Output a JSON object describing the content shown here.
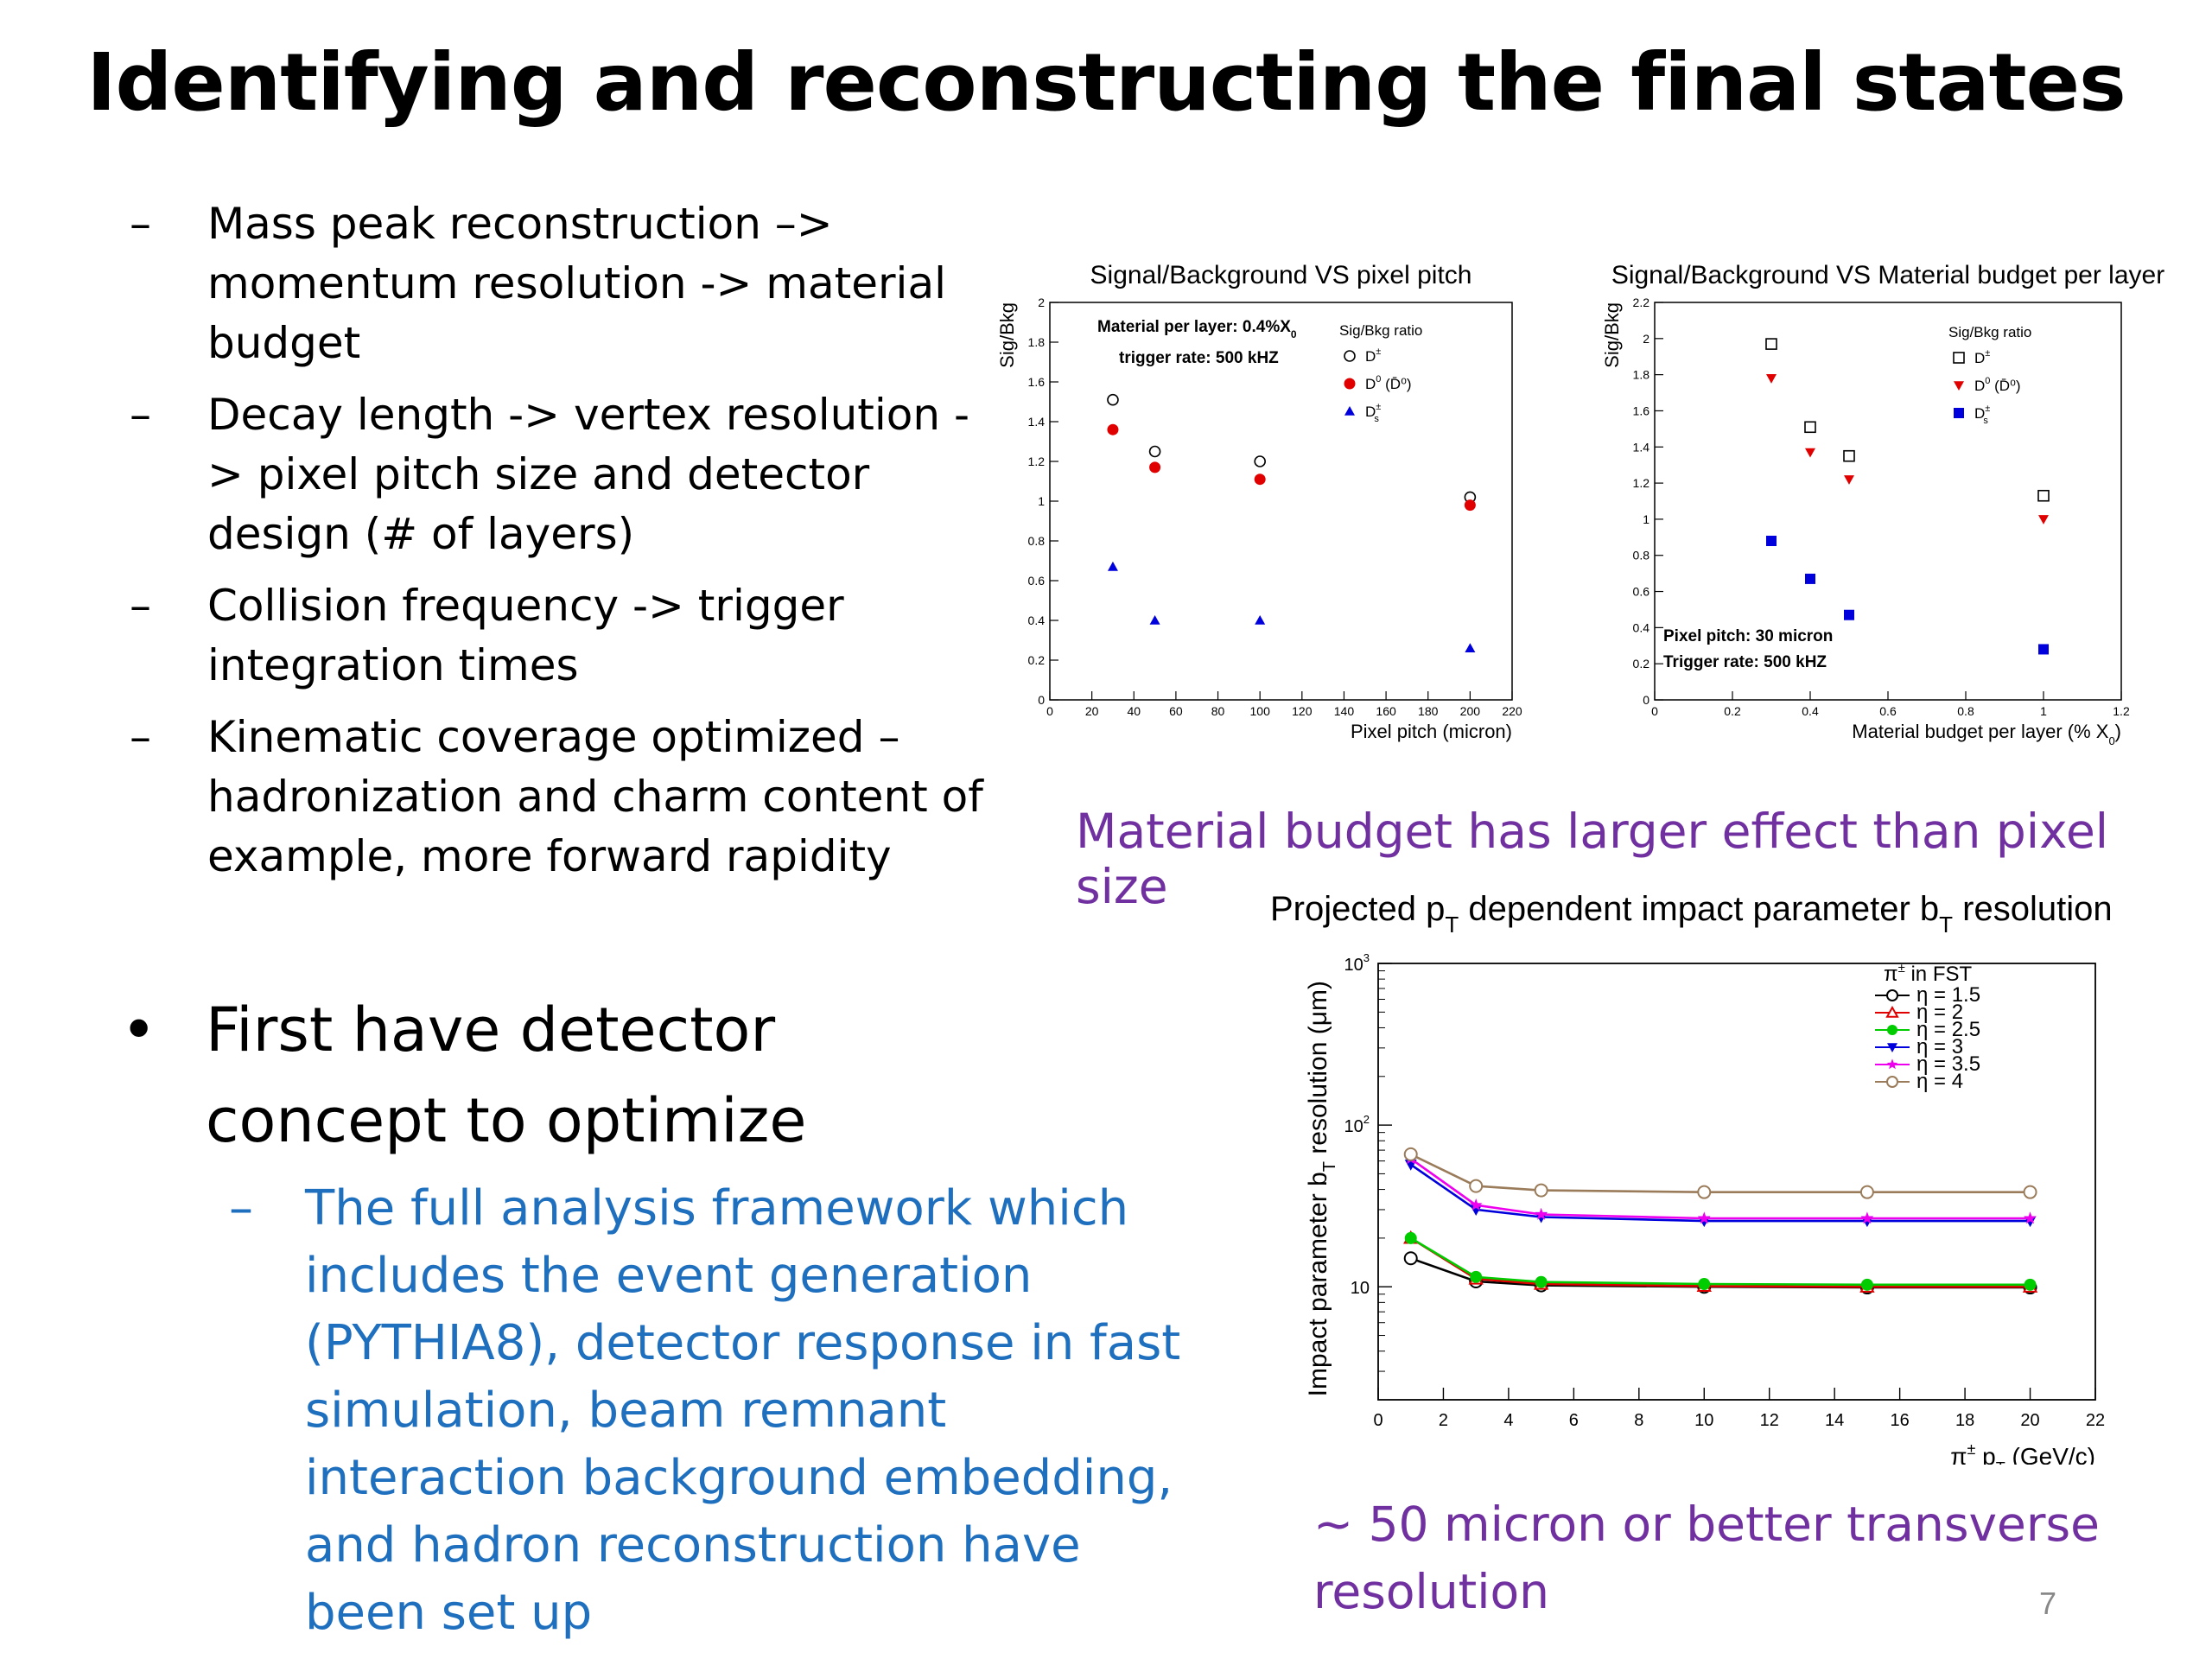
{
  "slide": {
    "title": "Identifying and reconstructing the final states",
    "dash": "–",
    "bullet_symbol": "•",
    "bullets": [
      "Mass peak reconstruction –> momentum resolution -> material budget",
      "Decay length -> vertex resolution - > pixel pitch size and detector design (# of layers)",
      "Collision frequency -> trigger integration times",
      "Kinematic coverage optimized – hadronization and charm content of example, more forward rapidity"
    ],
    "main_point": "First have detector concept to optimize",
    "sub_point": "The full analysis framework which includes the event generation (PYTHIA8), detector response in fast simulation, beam remnant interaction background embedding, and hadron reconstruction have been set up",
    "caption_material": "Material budget has larger effect than pixel size",
    "caption_resolution": "~ 50 micron or better transverse resolution",
    "page_number": "7",
    "colors": {
      "sub_text": "#1f6fbf",
      "caption": "#7030a0",
      "red": "#e00000",
      "blue": "#0000dd",
      "green": "#00cc00",
      "magenta": "#ee00ee",
      "brown": "#9a7b5a"
    }
  },
  "chart_data": [
    {
      "type": "scatter",
      "title": "Signal/Background VS pixel pitch",
      "xlabel": "Pixel pitch (micron)",
      "ylabel": "Sig/Bkg",
      "xlim": [
        0,
        220
      ],
      "ylim": [
        0,
        2
      ],
      "xticks": [
        "0",
        "20",
        "40",
        "60",
        "80",
        "100",
        "120",
        "140",
        "160",
        "180",
        "200",
        "220"
      ],
      "yticks": [
        "0",
        "0.2",
        "0.4",
        "0.6",
        "0.8",
        "1",
        "1.2",
        "1.4",
        "1.6",
        "1.8",
        "2"
      ],
      "annotations": [
        "Material per layer: 0.4%X",
        "0",
        "trigger rate: 500 kHZ"
      ],
      "legend_title": "Sig/Bkg ratio",
      "legend": [
        {
          "label": "D",
          "sup": "±",
          "sub": ""
        },
        {
          "label": "D",
          "sup": "0",
          "sub": "",
          "extra": " (D̄⁰)"
        },
        {
          "label": "D",
          "sup": "±",
          "sub": "s"
        }
      ],
      "series": [
        {
          "name": "D±",
          "marker": "open-circle",
          "x": [
            30,
            50,
            100,
            200
          ],
          "y": [
            1.51,
            1.25,
            1.2,
            1.02
          ]
        },
        {
          "name": "D0",
          "marker": "red-circle",
          "x": [
            30,
            50,
            100,
            200
          ],
          "y": [
            1.36,
            1.17,
            1.11,
            0.98
          ]
        },
        {
          "name": "Ds",
          "marker": "blue-triangle",
          "x": [
            30,
            50,
            100,
            200
          ],
          "y": [
            0.67,
            0.4,
            0.4,
            0.26
          ]
        }
      ]
    },
    {
      "type": "scatter",
      "title": "Signal/Background VS Material budget per layer",
      "xlabel": "Material budget per layer (% X",
      "xlabel_sub": "0",
      "xlabel_end": ")",
      "ylabel": "Sig/Bkg",
      "xlim": [
        0,
        1.2
      ],
      "ylim": [
        0,
        2.2
      ],
      "xticks": [
        "0",
        "0.2",
        "0.4",
        "0.6",
        "0.8",
        "1",
        "1.2"
      ],
      "yticks": [
        "0",
        "0.2",
        "0.4",
        "0.6",
        "0.8",
        "1",
        "1.2",
        "1.4",
        "1.6",
        "1.8",
        "2",
        "2.2"
      ],
      "annotations": [
        "Pixel pitch: 30 micron",
        "Trigger rate: 500 kHZ"
      ],
      "legend_title": "Sig/Bkg ratio",
      "legend": [
        {
          "label": "D",
          "sup": "±",
          "sub": ""
        },
        {
          "label": "D",
          "sup": "0",
          "sub": "",
          "extra": " (D̄⁰)"
        },
        {
          "label": "D",
          "sup": "±",
          "sub": "s"
        }
      ],
      "series": [
        {
          "name": "D±",
          "marker": "open-square",
          "x": [
            0.3,
            0.4,
            0.5,
            1.0
          ],
          "y": [
            1.97,
            1.51,
            1.35,
            1.13
          ]
        },
        {
          "name": "D0",
          "marker": "red-triangle-down",
          "x": [
            0.3,
            0.4,
            0.5,
            1.0
          ],
          "y": [
            1.78,
            1.37,
            1.22,
            1.0
          ]
        },
        {
          "name": "Ds",
          "marker": "blue-square",
          "x": [
            0.3,
            0.4,
            0.5,
            1.0
          ],
          "y": [
            0.88,
            0.67,
            0.47,
            0.28
          ]
        }
      ]
    },
    {
      "type": "line",
      "title": "Projected p",
      "title_sub1": "T",
      "title_mid": " dependent impact parameter b",
      "title_sub2": "T",
      "title_end": " resolution",
      "xlabel": "π",
      "xlabel_sup": "±",
      "xlabel_mid": " p",
      "xlabel_sub": "T",
      "xlabel_end": " (GeV/c)",
      "ylabel": "Impact parameter b",
      "ylabel_sub": "T",
      "ylabel_end": " resolution (μm)",
      "xlim": [
        0,
        22
      ],
      "ylim": [
        2,
        1000
      ],
      "yscale": "log",
      "xticks": [
        "0",
        "2",
        "4",
        "6",
        "8",
        "10",
        "12",
        "14",
        "16",
        "18",
        "20",
        "22"
      ],
      "yticks": [
        {
          "value": 10,
          "label": "10"
        },
        {
          "value": 100,
          "label": "10",
          "sup": "2"
        },
        {
          "value": 1000,
          "label": "10",
          "sup": "3"
        }
      ],
      "legend_title": "π",
      "legend_title_sup": "±",
      "legend_title_end": " in FST",
      "series": [
        {
          "name": "η = 1.5",
          "color": "#000000",
          "marker": "open-circle",
          "x": [
            1,
            3,
            5,
            10,
            15,
            20
          ],
          "y": [
            15,
            10.8,
            10.2,
            10.0,
            9.9,
            9.9
          ]
        },
        {
          "name": "η = 2",
          "color": "#e00000",
          "marker": "open-triangle",
          "x": [
            1,
            3,
            5,
            10,
            15,
            20
          ],
          "y": [
            20,
            11.2,
            10.4,
            10.1,
            10.0,
            10.0
          ]
        },
        {
          "name": "η = 2.5",
          "color": "#00cc00",
          "marker": "filled-circle",
          "x": [
            1,
            3,
            5,
            10,
            15,
            20
          ],
          "y": [
            20,
            11.5,
            10.7,
            10.4,
            10.3,
            10.3
          ]
        },
        {
          "name": "η = 3",
          "color": "#0000dd",
          "marker": "filled-triangle-down",
          "x": [
            1,
            3,
            5,
            10,
            15,
            20
          ],
          "y": [
            57,
            30,
            27,
            25.5,
            25.5,
            25.5
          ]
        },
        {
          "name": "η = 3.5",
          "color": "#ee00ee",
          "marker": "star",
          "x": [
            1,
            3,
            5,
            10,
            15,
            20
          ],
          "y": [
            62,
            32,
            28,
            26.5,
            26.5,
            26.5
          ]
        },
        {
          "name": "η = 4",
          "color": "#9a7b5a",
          "marker": "open-circle",
          "x": [
            1,
            3,
            5,
            10,
            15,
            20
          ],
          "y": [
            66,
            42,
            39.5,
            38.5,
            38.5,
            38.5
          ]
        }
      ]
    }
  ]
}
